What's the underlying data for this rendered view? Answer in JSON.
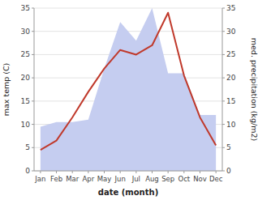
{
  "chart_data": {
    "type": "line",
    "categories": [
      "Jan",
      "Feb",
      "Mar",
      "Apr",
      "May",
      "Jun",
      "Jul",
      "Aug",
      "Sep",
      "Oct",
      "Nov",
      "Dec"
    ],
    "series": [
      {
        "type": "area",
        "color": "#c5cdf0",
        "axis": "y2",
        "values": [
          9.5,
          10.5,
          10.5,
          11.0,
          22.0,
          32.0,
          28.0,
          35.0,
          21.0,
          21.0,
          12.0,
          12.0
        ]
      },
      {
        "type": "line",
        "color": "#c0392b",
        "values": [
          4.5,
          6.5,
          11.5,
          17.0,
          22.0,
          26.0,
          25.0,
          27.0,
          34.0,
          20.5,
          11.5,
          5.5
        ]
      }
    ],
    "xlabel": "date (month)",
    "ylabel": "max temp (C)",
    "y2label": "med. precipitation (kg/m2)",
    "ylim": [
      0,
      35
    ],
    "yticks": [
      0,
      5,
      10,
      15,
      20,
      25,
      30,
      35
    ],
    "y2lim": [
      0,
      35
    ],
    "y2ticks": [
      0,
      5,
      10,
      15,
      20,
      25,
      30,
      35
    ],
    "grid": true
  }
}
